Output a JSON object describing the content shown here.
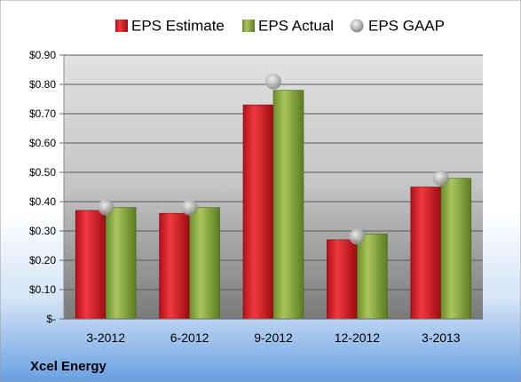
{
  "chart_data": {
    "type": "bar",
    "company": "Xcel Energy",
    "categories": [
      "3-2012",
      "6-2012",
      "9-2012",
      "12-2012",
      "3-2013"
    ],
    "series": [
      {
        "name": "EPS Estimate",
        "kind": "bar",
        "color": "#c8141c",
        "values": [
          0.37,
          0.36,
          0.73,
          0.27,
          0.45
        ]
      },
      {
        "name": "EPS Actual",
        "kind": "bar",
        "color": "#86a83c",
        "values": [
          0.38,
          0.38,
          0.78,
          0.29,
          0.48
        ]
      },
      {
        "name": "EPS GAAP",
        "kind": "marker",
        "color": "#a6a6a6",
        "values": [
          0.38,
          0.38,
          0.81,
          0.28,
          0.48
        ]
      }
    ],
    "yticks": [
      0.9,
      0.8,
      0.7,
      0.6,
      0.5,
      0.4,
      0.3,
      0.2,
      0.1,
      0
    ],
    "ytick_labels": [
      "$0.90",
      "$0.80",
      "$0.70",
      "$0.60",
      "$0.50",
      "$0.40",
      "$0.30",
      "$0.20",
      "$0.10",
      "$-"
    ],
    "ylim": [
      0,
      0.9
    ],
    "grid": true,
    "legend": "top-center",
    "xlabel": "",
    "ylabel": ""
  },
  "colors": {
    "background_top": "#ffffff",
    "background_bottom": "#6aa0e2",
    "plot_top": "#dcdcdc",
    "plot_bottom": "#7c7c7c",
    "gridline": "#5a5a5a"
  }
}
